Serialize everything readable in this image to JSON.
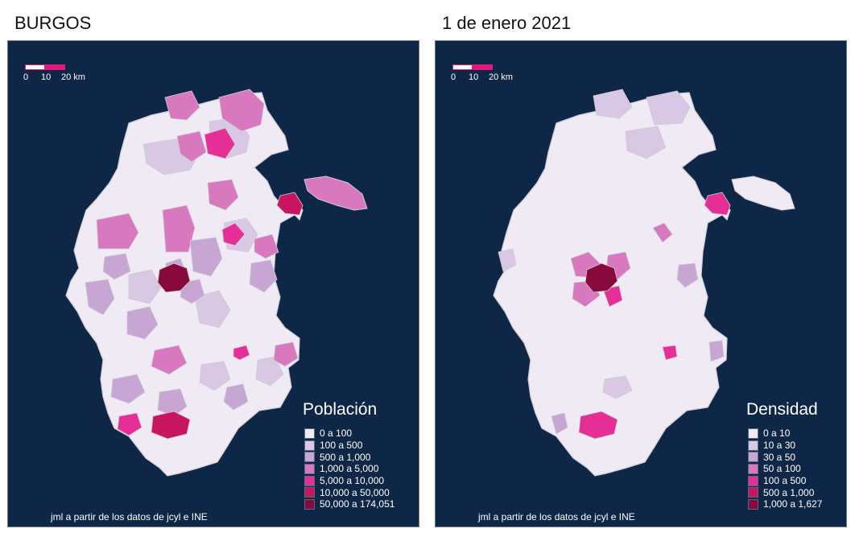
{
  "titles": {
    "left": "BURGOS",
    "right": "1 de enero 2021"
  },
  "scale": {
    "zero": "0",
    "mid": "10",
    "end": "20 km"
  },
  "colors": {
    "background": "#0f2747",
    "province_base": "#efeaf3",
    "border": "#cfcbd6",
    "c1": "#efeaf3",
    "c2": "#d9c8e3",
    "c3": "#c8a6d4",
    "c4": "#d878bf",
    "c5": "#e52f97",
    "c6": "#c8155f",
    "c7": "#880a3d"
  },
  "left_map": {
    "legend_title": "Población",
    "legend": [
      {
        "label": "0 a 100",
        "color": "#efeaf3"
      },
      {
        "label": "100 a 500",
        "color": "#d9c8e3"
      },
      {
        "label": "500 a 1,000",
        "color": "#c8a6d4"
      },
      {
        "label": "1,000 a 5,000",
        "color": "#d878bf"
      },
      {
        "label": "5,000 a 10,000",
        "color": "#e52f97"
      },
      {
        "label": "10,000 a 50,000",
        "color": "#c8155f"
      },
      {
        "label": "50,000 a 174,051",
        "color": "#880a3d"
      }
    ],
    "credit": "jml a partir de los datos de jcyl e INE"
  },
  "right_map": {
    "legend_title": "Densidad",
    "legend": [
      {
        "label": "0 a 10",
        "color": "#efeaf3"
      },
      {
        "label": "10 a 30",
        "color": "#d9c8e3"
      },
      {
        "label": "30 a 50",
        "color": "#c8a6d4"
      },
      {
        "label": "50 a 100",
        "color": "#d878bf"
      },
      {
        "label": "100 a 500",
        "color": "#e52f97"
      },
      {
        "label": "500 a 1,000",
        "color": "#c8155f"
      },
      {
        "label": "1,000 a 1,627",
        "color": "#880a3d"
      }
    ],
    "credit": "jml a partir de los datos de jcyl e INE"
  }
}
